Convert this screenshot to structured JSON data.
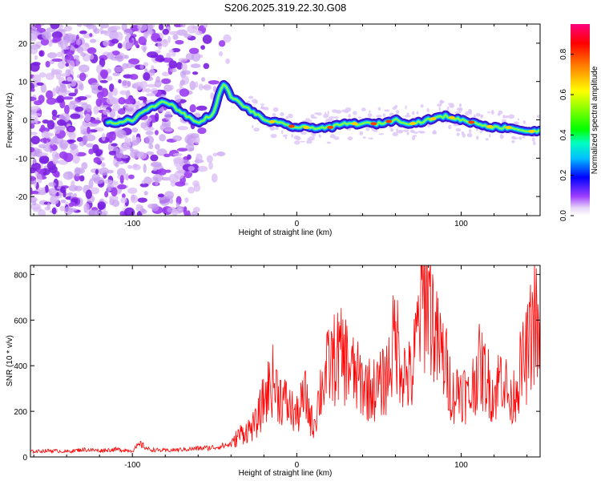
{
  "title": "S206.2025.319.22.30.G08",
  "chart_data": [
    {
      "type": "heatmap",
      "xlabel": "Height of straight line (km)",
      "ylabel": "Frequency (Hz)",
      "xlim": [
        -162,
        148
      ],
      "ylim": [
        -25,
        25
      ],
      "xticks": [
        -100,
        0,
        100
      ],
      "yticks": [
        -20,
        -10,
        0,
        10,
        20
      ],
      "colorbar": {
        "label": "Normalized spectral amplitude",
        "range": [
          0,
          0.95
        ],
        "ticks": [
          0.0,
          0.2,
          0.4,
          0.6,
          0.8
        ]
      },
      "ridge": {
        "description": "main frequency track",
        "x": [
          -115,
          -100,
          -90,
          -80,
          -70,
          -60,
          -50,
          -45,
          -40,
          -30,
          -20,
          -10,
          0,
          10,
          20,
          30,
          40,
          50,
          60,
          70,
          80,
          90,
          100,
          110,
          120,
          130,
          140,
          148
        ],
        "y": [
          -1,
          0,
          3,
          5,
          2,
          -1,
          2,
          10,
          6,
          3,
          0,
          -1,
          -2,
          -2,
          -2,
          -1,
          -1,
          -1,
          0,
          -1,
          0,
          1,
          0,
          -1,
          -2,
          -2,
          -3,
          -3
        ]
      }
    },
    {
      "type": "line",
      "xlabel": "Height of straight line (km)",
      "ylabel": "SNR (10 * v/v)",
      "xlim": [
        -162,
        148
      ],
      "ylim": [
        0,
        840
      ],
      "xticks": [
        -100,
        0,
        100
      ],
      "yticks": [
        0,
        200,
        400,
        600,
        800
      ],
      "series": [
        {
          "name": "SNR",
          "color": "#ff0000",
          "x": [
            -162,
            -150,
            -140,
            -130,
            -120,
            -110,
            -100,
            -95,
            -90,
            -80,
            -70,
            -60,
            -50,
            -40,
            -35,
            -30,
            -25,
            -20,
            -15,
            -10,
            -5,
            0,
            5,
            10,
            15,
            20,
            25,
            30,
            35,
            40,
            45,
            50,
            55,
            60,
            65,
            70,
            75,
            80,
            85,
            90,
            95,
            100,
            105,
            110,
            115,
            120,
            125,
            130,
            135,
            140,
            145,
            148
          ],
          "values": [
            25,
            30,
            25,
            35,
            30,
            35,
            30,
            60,
            35,
            30,
            35,
            40,
            45,
            60,
            110,
            130,
            160,
            280,
            380,
            300,
            250,
            200,
            300,
            150,
            350,
            450,
            500,
            480,
            400,
            360,
            330,
            340,
            400,
            600,
            420,
            380,
            720,
            840,
            560,
            470,
            300,
            350,
            280,
            450,
            400,
            300,
            430,
            250,
            400,
            500,
            700,
            450
          ]
        }
      ]
    }
  ]
}
